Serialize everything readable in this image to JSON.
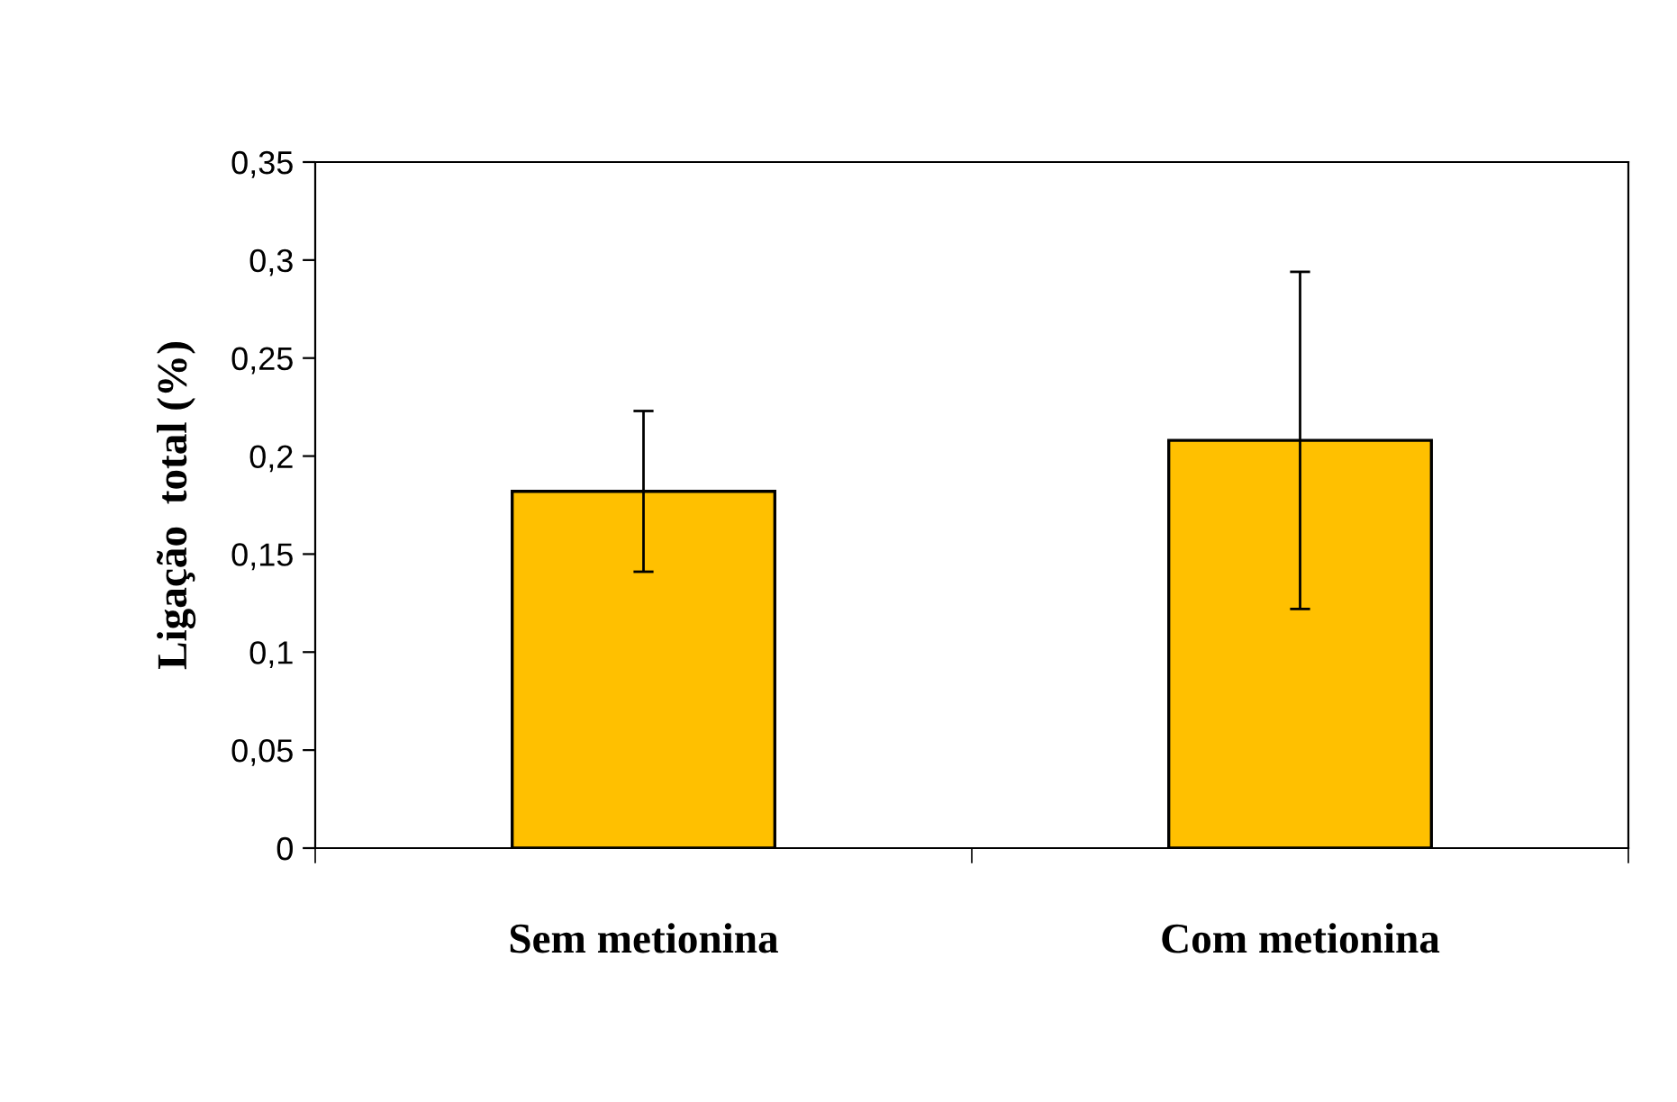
{
  "chart_data": {
    "type": "bar",
    "ylabel": "Ligação  total (%)",
    "categories": [
      "Sem metionina",
      "Com metionina"
    ],
    "values": [
      0.182,
      0.208
    ],
    "errors": [
      0.041,
      0.086
    ],
    "color": "#ffc000",
    "ylim": [
      0,
      0.35
    ],
    "yticks": [
      0,
      {
        "value": 0.05,
        "label": "0,05"
      },
      {
        "value": 0.1,
        "label": "0,1"
      },
      {
        "value": 0.15,
        "label": "0,15"
      },
      {
        "value": 0.2,
        "label": "0,2"
      },
      {
        "value": 0.25,
        "label": "0,25"
      },
      {
        "value": 0.3,
        "label": "0,3"
      },
      {
        "value": 0.35,
        "label": "0,35"
      }
    ],
    "grid": false,
    "legend": false
  }
}
